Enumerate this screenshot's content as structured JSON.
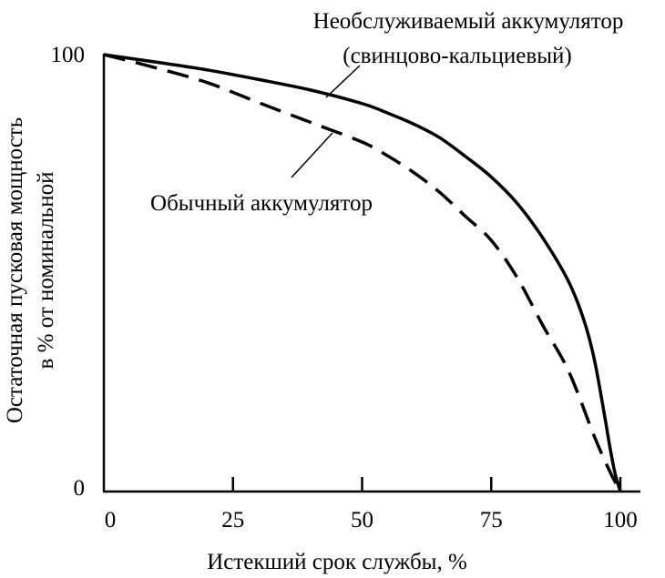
{
  "chart_data": {
    "type": "line",
    "title": "",
    "xlabel": "Истекший срок службы, %",
    "ylabel_lines": [
      "Остаточная пусковая мощность",
      "в % от номинальной"
    ],
    "x_ticks": [
      0,
      25,
      50,
      75,
      100
    ],
    "y_ticks": [
      0,
      100
    ],
    "xlim": [
      0,
      104
    ],
    "ylim": [
      0,
      100
    ],
    "grid": false,
    "series": [
      {
        "name": "Необслуживаемый аккумулятор (свинцово-кальциевый)",
        "style": "solid",
        "color": "#000000",
        "x": [
          0,
          10,
          20,
          30,
          40,
          50,
          55,
          60,
          65,
          70,
          75,
          80,
          85,
          90,
          93,
          95,
          97,
          98,
          99,
          100
        ],
        "y": [
          100,
          98.3,
          96.5,
          94.3,
          91.9,
          88.8,
          86.6,
          84.1,
          81.0,
          76.7,
          72.0,
          66.0,
          58.0,
          48.0,
          39.0,
          30.0,
          17.0,
          10.0,
          4.0,
          0
        ]
      },
      {
        "name": "Обычный аккумулятор",
        "style": "dashed",
        "color": "#000000",
        "x": [
          0,
          10,
          20,
          30,
          40,
          50,
          55,
          60,
          65,
          70,
          75,
          80,
          85,
          90,
          95,
          98,
          100
        ],
        "y": [
          100,
          97.0,
          93.6,
          89.0,
          84.5,
          80.0,
          76.8,
          73.0,
          68.5,
          63.0,
          57.5,
          49.0,
          38.0,
          27.5,
          12.5,
          4.5,
          0
        ]
      }
    ],
    "annotations": [
      {
        "lines": [
          "Необслуживаемый аккумулятор",
          "(свинцово-кальциевый)"
        ],
        "target_series": 0
      },
      {
        "lines": [
          "Обычный аккумулятор"
        ],
        "target_series": 1
      }
    ]
  }
}
